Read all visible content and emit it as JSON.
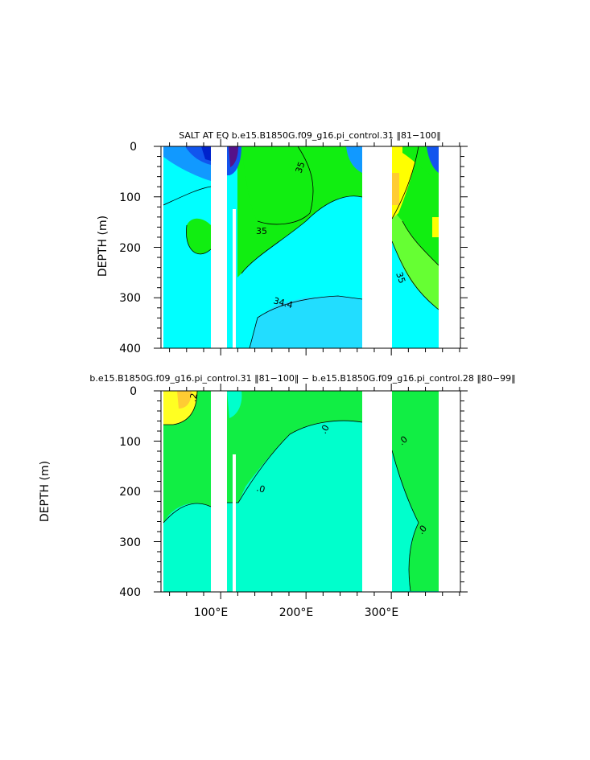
{
  "chart_data": [
    {
      "type": "heatmap",
      "subtype": "filled-contour",
      "title": "SALT AT EQ  b.e15.B1850G.f09_g16.pi_control.31  ‖81−100‖",
      "ylabel": "DEPTH  (m)",
      "xlabel": "",
      "xlim": [
        30,
        390
      ],
      "ylim": [
        400,
        0
      ],
      "y_reversed": true,
      "y_ticks": [
        "0",
        "100",
        "200",
        "300",
        "400"
      ],
      "x_ticks": [],
      "contour_labels": [
        "35",
        "35",
        "34.4",
        "35"
      ],
      "land_gaps_lon": [
        [
          100,
          117
        ],
        [
          279,
          315
        ]
      ],
      "colors": {
        "base": "#00ffff",
        "mid": "#22ddff",
        "salty": "#11ee11",
        "saltier": "#66ff33",
        "saltiest": "#ffff00",
        "peak": "#ffcc33",
        "fresh": "#1199ff",
        "fresher": "#1155ee",
        "freshest": "#551188",
        "land": "#ffffff"
      }
    },
    {
      "type": "heatmap",
      "subtype": "filled-contour",
      "title": "b.e15.B1850G.f09_g16.pi_control.31  ‖81−100‖  −  b.e15.B1850G.f09_g16.pi_control.28  ‖80−99‖",
      "ylabel": "DEPTH  (m)",
      "xlabel": "",
      "xlim": [
        30,
        390
      ],
      "ylim": [
        400,
        0
      ],
      "y_reversed": true,
      "y_ticks": [
        "0",
        "100",
        "200",
        "300",
        "400"
      ],
      "x_ticks": [
        "100°E",
        "200°E",
        "300°E"
      ],
      "contour_labels": [
        ".2",
        ".0",
        ".0",
        ".0",
        ".0"
      ],
      "land_gaps_lon": [
        [
          100,
          117
        ],
        [
          279,
          315
        ]
      ],
      "colors": {
        "base": "#00ffcc",
        "positive": "#11ee44",
        "high": "#ffff22",
        "peak": "#ffcc33",
        "land": "#ffffff"
      }
    }
  ]
}
